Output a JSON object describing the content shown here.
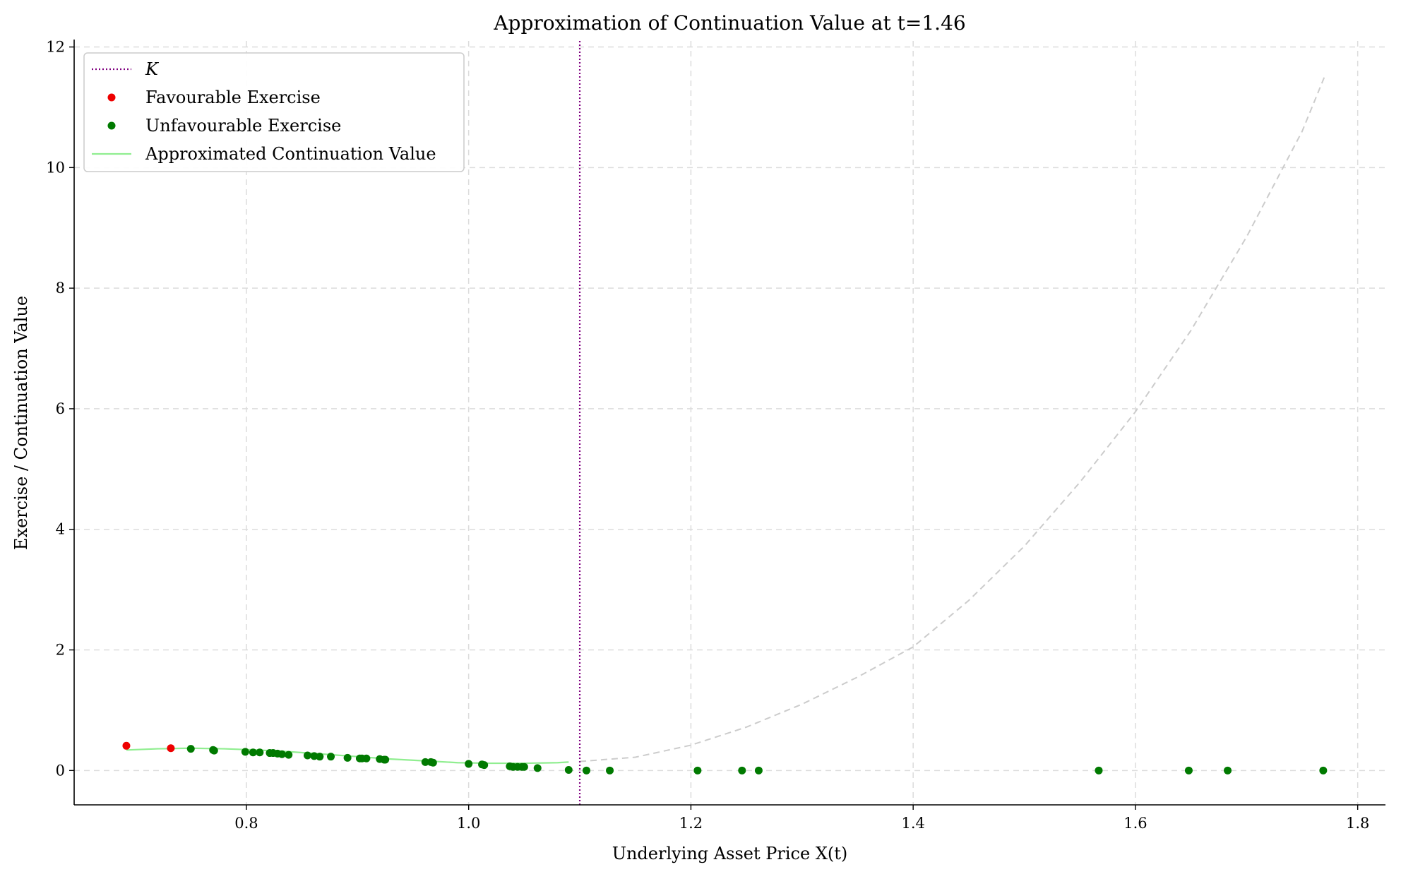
{
  "chart_data": {
    "type": "scatter",
    "title": "Approximation of Continuation Value at t=1.46",
    "xlabel": "Underlying Asset Price X(t)",
    "ylabel": "Exercise / Continuation Value",
    "xlim": [
      0.645,
      1.825
    ],
    "ylim": [
      -0.57,
      12.1
    ],
    "xticks": [
      0.8,
      1.0,
      1.2,
      1.4,
      1.6,
      1.8
    ],
    "xtick_labels": [
      "0.8",
      "1.0",
      "1.2",
      "1.4",
      "1.6",
      "1.8"
    ],
    "yticks": [
      0,
      2,
      4,
      6,
      8,
      10,
      12
    ],
    "ytick_labels": [
      "0",
      "2",
      "4",
      "6",
      "8",
      "10",
      "12"
    ],
    "grid": true,
    "legend_position": "top-left",
    "strike": {
      "name": "K",
      "x": 1.1,
      "color": "#800080",
      "style": "dotted"
    },
    "payoff_curve": {
      "style": "dashed",
      "color": "#cccccc",
      "x": [
        1.1,
        1.15,
        1.2,
        1.25,
        1.3,
        1.35,
        1.4,
        1.45,
        1.5,
        1.55,
        1.6,
        1.65,
        1.7,
        1.75,
        1.77
      ],
      "y": [
        0.15,
        0.22,
        0.42,
        0.72,
        1.1,
        1.55,
        2.05,
        2.82,
        3.72,
        4.78,
        5.95,
        7.3,
        8.85,
        10.6,
        11.5
      ]
    },
    "series": [
      {
        "name": "Favourable Exercise",
        "type": "scatter",
        "color": "#ee0000",
        "x": [
          0.692,
          0.732
        ],
        "y": [
          0.41,
          0.37
        ]
      },
      {
        "name": "Unfavourable Exercise",
        "type": "scatter",
        "color": "#007a00",
        "x": [
          0.75,
          0.77,
          0.771,
          0.799,
          0.806,
          0.812,
          0.821,
          0.824,
          0.828,
          0.832,
          0.838,
          0.855,
          0.861,
          0.866,
          0.876,
          0.891,
          0.902,
          0.904,
          0.908,
          0.92,
          0.924,
          0.925,
          0.961,
          0.966,
          0.968,
          1.0,
          1.012,
          1.014,
          1.037,
          1.04,
          1.044,
          1.048,
          1.05,
          1.062,
          1.09,
          1.106,
          1.127,
          1.206,
          1.246,
          1.261,
          1.567,
          1.648,
          1.683,
          1.769
        ],
        "y": [
          0.36,
          0.34,
          0.33,
          0.31,
          0.3,
          0.3,
          0.29,
          0.29,
          0.28,
          0.27,
          0.26,
          0.25,
          0.24,
          0.23,
          0.23,
          0.21,
          0.2,
          0.2,
          0.2,
          0.19,
          0.18,
          0.18,
          0.14,
          0.14,
          0.13,
          0.11,
          0.1,
          0.09,
          0.07,
          0.06,
          0.06,
          0.06,
          0.06,
          0.04,
          0.01,
          0.0,
          0.0,
          0.0,
          0.0,
          0.0,
          0.0,
          0.0,
          0.0,
          0.0
        ]
      },
      {
        "name": "Approximated Continuation Value",
        "type": "line",
        "color": "#90ee90",
        "x": [
          0.692,
          0.72,
          0.75,
          0.78,
          0.81,
          0.84,
          0.87,
          0.9,
          0.93,
          0.96,
          0.99,
          1.02,
          1.05,
          1.08,
          1.09
        ],
        "y": [
          0.34,
          0.36,
          0.37,
          0.36,
          0.34,
          0.31,
          0.27,
          0.23,
          0.19,
          0.16,
          0.13,
          0.12,
          0.12,
          0.13,
          0.14
        ]
      }
    ],
    "legend": [
      "K",
      "Favourable Exercise",
      "Unfavourable Exercise",
      "Approximated Continuation Value"
    ]
  }
}
